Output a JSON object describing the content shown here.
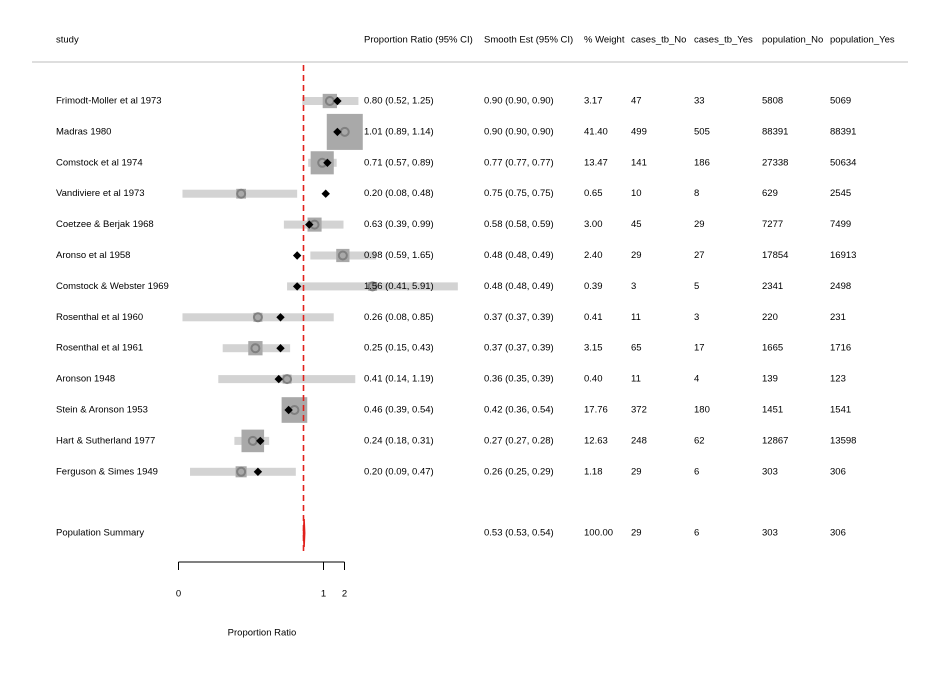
{
  "chart_data": {
    "type": "forest",
    "columns": [
      "study",
      "Proportion Ratio (95% CI)",
      "Smooth Est (95% CI)",
      "% Weight",
      "cases_tb_No",
      "cases_tb_Yes",
      "population_No",
      "population_Yes"
    ],
    "rows": [
      {
        "study": "Frimodt-Moller et al 1973",
        "ci_text": "0.80 (0.52, 1.25)",
        "smooth_text": "0.90 (0.90, 0.90)",
        "weight": "3.17",
        "cases_tb_No": "47",
        "cases_tb_Yes": "33",
        "population_No": "5808",
        "population_Yes": "5069",
        "est": 0.8,
        "lo": 0.52,
        "hi": 1.25,
        "smooth": 0.9,
        "w": 3.17
      },
      {
        "study": "Madras 1980",
        "ci_text": "1.01 (0.89, 1.14)",
        "smooth_text": "0.90 (0.90, 0.90)",
        "weight": "41.40",
        "cases_tb_No": "499",
        "cases_tb_Yes": "505",
        "population_No": "88391",
        "population_Yes": "88391",
        "est": 1.01,
        "lo": 0.89,
        "hi": 1.14,
        "smooth": 0.9,
        "w": 41.4
      },
      {
        "study": "Comstock et al 1974",
        "ci_text": "0.71 (0.57, 0.89)",
        "smooth_text": "0.77 (0.77, 0.77)",
        "weight": "13.47",
        "cases_tb_No": "141",
        "cases_tb_Yes": "186",
        "population_No": "27338",
        "population_Yes": "50634",
        "est": 0.71,
        "lo": 0.57,
        "hi": 0.89,
        "smooth": 0.77,
        "w": 13.47
      },
      {
        "study": "Vandiviere et al 1973",
        "ci_text": "0.20 (0.08, 0.48)",
        "smooth_text": "0.75 (0.75, 0.75)",
        "weight": "0.65",
        "cases_tb_No": "10",
        "cases_tb_Yes": "8",
        "population_No": "629",
        "population_Yes": "2545",
        "est": 0.2,
        "lo": 0.08,
        "hi": 0.48,
        "smooth": 0.75,
        "w": 0.65
      },
      {
        "study": "Coetzee & Berjak 1968",
        "ci_text": "0.63 (0.39, 0.99)",
        "smooth_text": "0.58 (0.58, 0.59)",
        "weight": "3.00",
        "cases_tb_No": "45",
        "cases_tb_Yes": "29",
        "population_No": "7277",
        "population_Yes": "7499",
        "est": 0.63,
        "lo": 0.39,
        "hi": 0.99,
        "smooth": 0.58,
        "w": 3.0
      },
      {
        "study": "Aronso et al 1958",
        "ci_text": "0.98 (0.59, 1.65)",
        "smooth_text": "0.48 (0.48, 0.49)",
        "weight": "2.40",
        "cases_tb_No": "29",
        "cases_tb_Yes": "27",
        "population_No": "17854",
        "population_Yes": "16913",
        "est": 0.98,
        "lo": 0.59,
        "hi": 1.65,
        "smooth": 0.48,
        "w": 2.4
      },
      {
        "study": "Comstock & Webster 1969",
        "ci_text": "1.56 (0.41, 5.91)",
        "smooth_text": "0.48 (0.48, 0.49)",
        "weight": "0.39",
        "cases_tb_No": "3",
        "cases_tb_Yes": "5",
        "population_No": "2341",
        "population_Yes": "2498",
        "est": 1.56,
        "lo": 0.41,
        "hi": 5.91,
        "smooth": 0.48,
        "w": 0.39
      },
      {
        "study": "Rosenthal et al 1960",
        "ci_text": "0.26 (0.08, 0.85)",
        "smooth_text": "0.37 (0.37, 0.39)",
        "weight": "0.41",
        "cases_tb_No": "11",
        "cases_tb_Yes": "3",
        "population_No": "220",
        "population_Yes": "231",
        "est": 0.26,
        "lo": 0.08,
        "hi": 0.85,
        "smooth": 0.37,
        "w": 0.41
      },
      {
        "study": "Rosenthal et al 1961",
        "ci_text": "0.25 (0.15, 0.43)",
        "smooth_text": "0.37 (0.37, 0.39)",
        "weight": "3.15",
        "cases_tb_No": "65",
        "cases_tb_Yes": "17",
        "population_No": "1665",
        "population_Yes": "1716",
        "est": 0.25,
        "lo": 0.15,
        "hi": 0.43,
        "smooth": 0.37,
        "w": 3.15
      },
      {
        "study": "Aronson 1948",
        "ci_text": "0.41 (0.14, 1.19)",
        "smooth_text": "0.36 (0.35, 0.39)",
        "weight": "0.40",
        "cases_tb_No": "11",
        "cases_tb_Yes": "4",
        "population_No": "139",
        "population_Yes": "123",
        "est": 0.41,
        "lo": 0.14,
        "hi": 1.19,
        "smooth": 0.36,
        "w": 0.4
      },
      {
        "study": "Stein & Aronson 1953",
        "ci_text": "0.46 (0.39, 0.54)",
        "smooth_text": "0.42 (0.36, 0.54)",
        "weight": "17.76",
        "cases_tb_No": "372",
        "cases_tb_Yes": "180",
        "population_No": "1451",
        "population_Yes": "1541",
        "est": 0.46,
        "lo": 0.39,
        "hi": 0.54,
        "smooth": 0.42,
        "w": 17.76
      },
      {
        "study": "Hart & Sutherland 1977",
        "ci_text": "0.24 (0.18, 0.31)",
        "smooth_text": "0.27 (0.27, 0.28)",
        "weight": "12.63",
        "cases_tb_No": "248",
        "cases_tb_Yes": "62",
        "population_No": "12867",
        "population_Yes": "13598",
        "est": 0.24,
        "lo": 0.18,
        "hi": 0.31,
        "smooth": 0.27,
        "w": 12.63
      },
      {
        "study": "Ferguson & Simes 1949",
        "ci_text": "0.20 (0.09, 0.47)",
        "smooth_text": "0.26 (0.25, 0.29)",
        "weight": "1.18",
        "cases_tb_No": "29",
        "cases_tb_Yes": "6",
        "population_No": "303",
        "population_Yes": "306",
        "est": 0.2,
        "lo": 0.09,
        "hi": 0.47,
        "smooth": 0.26,
        "w": 1.18
      }
    ],
    "summary": {
      "study": "Population Summary",
      "ci_text": "",
      "smooth_text": "0.53 (0.53, 0.54)",
      "weight": "100.00",
      "cases_tb_No": "29",
      "cases_tb_Yes": "6",
      "population_No": "303",
      "population_Yes": "306",
      "est": 0.53,
      "lo": 0.53,
      "hi": 0.54
    },
    "x_axis": {
      "label": "Proportion Ratio",
      "scale": "log",
      "ticks": [
        0,
        1,
        2
      ],
      "tick_labels": [
        "0",
        "1",
        "2"
      ]
    },
    "reference_line": 0.53,
    "colors": {
      "ci_bar": "#d3d3d3",
      "weight_box": "#a9a9a9",
      "point_outline": "#808080",
      "smooth_marker": "#000000",
      "reference": "#e0201b",
      "header_rule": "#bdbdbd"
    }
  }
}
